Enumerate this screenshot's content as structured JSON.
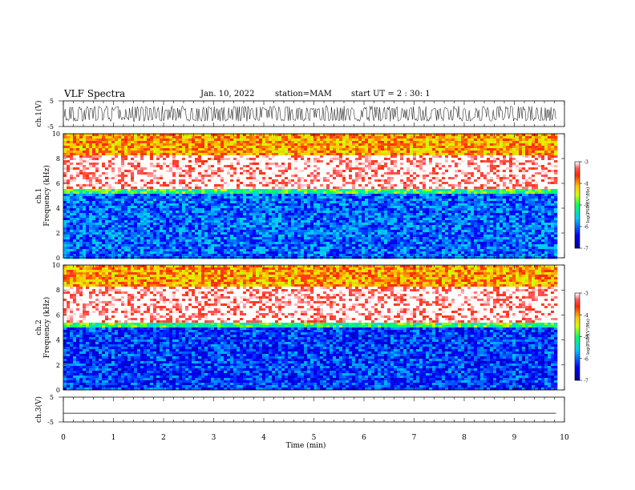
{
  "header": {
    "title": "VLF Spectra",
    "date": "Jan. 10, 2022",
    "station": "station=MAM",
    "start": "start UT =  2 : 30: 1"
  },
  "chart_data": [
    {
      "type": "line",
      "ylabel": "ch.1(V)",
      "yticks": [
        "5",
        "-5"
      ],
      "ylim": [
        -5,
        5
      ],
      "description": "dense oscillating waveform, amplitude ~±3 V",
      "amplitude": 3
    },
    {
      "type": "heatmap",
      "ylabel_line1": "ch.1",
      "ylabel_line2": "Frequency (kHz)",
      "yticks": [
        "0",
        "2",
        "4",
        "6",
        "8",
        "10"
      ],
      "ylim": [
        0,
        10
      ],
      "bands": [
        {
          "from": 0,
          "to": 5.2,
          "level": -6
        },
        {
          "from": 5.2,
          "to": 5.6,
          "level": -5
        },
        {
          "from": 5.6,
          "to": 8.3,
          "level": -3
        },
        {
          "from": 8.3,
          "to": 10,
          "level": -4
        }
      ],
      "colorbar": {
        "ticks": [
          "-3",
          "-4",
          "-5",
          "-6",
          "-7"
        ],
        "label": "log(PSD)(V²/Hz)",
        "range": [
          -7,
          -3
        ]
      }
    },
    {
      "type": "heatmap",
      "ylabel_line1": "ch.2",
      "ylabel_line2": "Frequency (kHz)",
      "yticks": [
        "0",
        "2",
        "4",
        "6",
        "8",
        "10"
      ],
      "ylim": [
        0,
        10
      ],
      "bands": [
        {
          "from": 0,
          "to": 5.0,
          "level": -6.2
        },
        {
          "from": 5.0,
          "to": 5.5,
          "level": -5
        },
        {
          "from": 5.5,
          "to": 8.3,
          "level": -3
        },
        {
          "from": 8.3,
          "to": 10,
          "level": -4
        }
      ],
      "colorbar": {
        "ticks": [
          "-3",
          "-4",
          "-5",
          "-6",
          "-7"
        ],
        "label": "log(PSD)(V²/Hz)",
        "range": [
          -7,
          -3
        ]
      }
    },
    {
      "type": "line",
      "ylabel": "ch.3(V)",
      "yticks": [
        "5",
        "-5"
      ],
      "ylim": [
        -5,
        5
      ],
      "description": "flat line",
      "value": -1.5
    }
  ],
  "xaxis": {
    "label": "Time (min)",
    "ticks": [
      "0",
      "1",
      "2",
      "3",
      "4",
      "5",
      "6",
      "7",
      "8",
      "9",
      "10"
    ],
    "xlim": [
      0,
      10
    ],
    "data_end": 9.83
  }
}
